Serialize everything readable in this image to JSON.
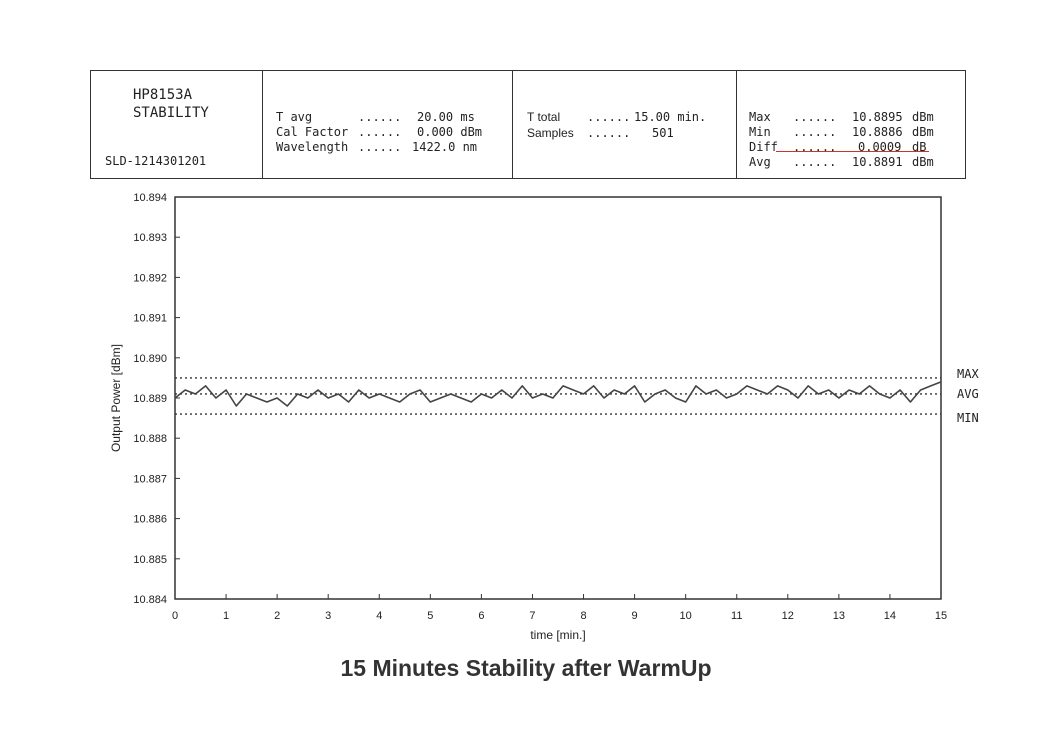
{
  "header": {
    "device": "HP8153A",
    "mode": "STABILITY",
    "serial": "SLD-1214301201",
    "params1": [
      {
        "label": "T avg",
        "dots": "......",
        "value": "20.00 ms"
      },
      {
        "label": "Cal Factor",
        "dots": "......",
        "value": "0.000 dBm"
      },
      {
        "label": "Wavelength",
        "dots": "......",
        "value": "1422.0 nm"
      }
    ],
    "params2": [
      {
        "label": "T total",
        "dots": "......",
        "value": "15.00 min."
      },
      {
        "label": "Samples",
        "dots": "......",
        "value": "501"
      }
    ],
    "stats": [
      {
        "label": "Max",
        "dots": "......",
        "value": "10.8895",
        "unit": "dBm"
      },
      {
        "label": "Min",
        "dots": "......",
        "value": "10.8886",
        "unit": "dBm"
      },
      {
        "label": "Diff",
        "dots": "......",
        "value": "0.0009",
        "unit": "dB"
      },
      {
        "label": "Avg",
        "dots": "......",
        "value": "10.8891",
        "unit": "dBm"
      }
    ]
  },
  "chart_data": {
    "type": "line",
    "title": "15 Minutes Stability after WarmUp",
    "xlabel": "time [min.]",
    "ylabel": "Output Power [dBm]",
    "xlim": [
      0,
      15
    ],
    "ylim": [
      10.884,
      10.894
    ],
    "x_ticks": [
      "0",
      "1",
      "2",
      "3",
      "4",
      "5",
      "6",
      "7",
      "8",
      "9",
      "10",
      "11",
      "12",
      "13",
      "14",
      "15"
    ],
    "y_ticks": [
      "10.884",
      "10.885",
      "10.886",
      "10.887",
      "10.888",
      "10.889",
      "10.890",
      "10.891",
      "10.892",
      "10.893",
      "10.894"
    ],
    "reference_lines": [
      {
        "label": "MAX",
        "value": 10.8895
      },
      {
        "label": "AVG",
        "value": 10.8891
      },
      {
        "label": "MIN",
        "value": 10.8886
      }
    ],
    "series": [
      {
        "x": [
          0,
          0.2,
          0.4,
          0.6,
          0.8,
          1.0,
          1.2,
          1.4,
          1.6,
          1.8,
          2.0,
          2.2,
          2.4,
          2.6,
          2.8,
          3.0,
          3.2,
          3.4,
          3.6,
          3.8,
          4.0,
          4.2,
          4.4,
          4.6,
          4.8,
          5.0,
          5.2,
          5.4,
          5.6,
          5.8,
          6.0,
          6.2,
          6.4,
          6.6,
          6.8,
          7.0,
          7.2,
          7.4,
          7.6,
          7.8,
          8.0,
          8.2,
          8.4,
          8.6,
          8.8,
          9.0,
          9.2,
          9.4,
          9.6,
          9.8,
          10.0,
          10.2,
          10.4,
          10.6,
          10.8,
          11.0,
          11.2,
          11.4,
          11.6,
          11.8,
          12.0,
          12.2,
          12.4,
          12.6,
          12.8,
          13.0,
          13.2,
          13.4,
          13.6,
          13.8,
          14.0,
          14.2,
          14.4,
          14.6,
          14.8,
          15.0
        ],
        "y": [
          10.889,
          10.8892,
          10.8891,
          10.8893,
          10.889,
          10.8892,
          10.8888,
          10.8891,
          10.889,
          10.8889,
          10.889,
          10.8888,
          10.8891,
          10.889,
          10.8892,
          10.889,
          10.8891,
          10.8889,
          10.8892,
          10.889,
          10.8891,
          10.889,
          10.8889,
          10.8891,
          10.8892,
          10.8889,
          10.889,
          10.8891,
          10.889,
          10.8889,
          10.8891,
          10.889,
          10.8892,
          10.889,
          10.8893,
          10.889,
          10.8891,
          10.889,
          10.8893,
          10.8892,
          10.8891,
          10.8893,
          10.889,
          10.8892,
          10.8891,
          10.8893,
          10.8889,
          10.8891,
          10.8892,
          10.889,
          10.8889,
          10.8893,
          10.8891,
          10.8892,
          10.889,
          10.8891,
          10.8893,
          10.8892,
          10.8891,
          10.8893,
          10.8892,
          10.889,
          10.8893,
          10.8891,
          10.8892,
          10.889,
          10.8892,
          10.8891,
          10.8893,
          10.8891,
          10.889,
          10.8892,
          10.8889,
          10.8892,
          10.8893,
          10.8894
        ]
      }
    ]
  }
}
